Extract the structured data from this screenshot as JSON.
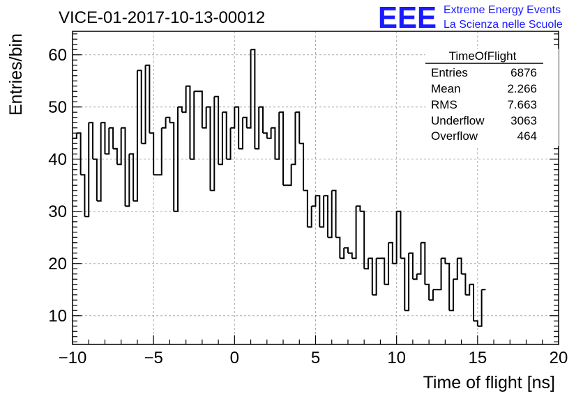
{
  "header": {
    "run_title": "VICE-01-2017-10-13-00012",
    "logo_text": "EEE",
    "brand_line1": "Extreme Energy Events",
    "brand_line2": "La Scienza nelle Scuole",
    "brand_color": "#1a1aff"
  },
  "stats_box": {
    "title": "TimeOfFlight",
    "rows": [
      {
        "label": "Entries",
        "value": "6876"
      },
      {
        "label": "Mean",
        "value": "2.266"
      },
      {
        "label": "RMS",
        "value": "7.663"
      },
      {
        "label": "Underflow",
        "value": "3063"
      },
      {
        "label": "Overflow",
        "value": "464"
      }
    ]
  },
  "chart_data": {
    "type": "histogram",
    "xlabel": "Time of flight [ns]",
    "ylabel": "Entries/bin",
    "xlim": [
      -10,
      20
    ],
    "ylim": [
      4.5,
      64.5
    ],
    "bin_width": 0.25,
    "grid": true,
    "xticks": [
      -10,
      -5,
      0,
      5,
      10,
      15,
      20
    ],
    "xtick_labels": [
      "−10",
      "−5",
      "0",
      "5",
      "10",
      "15",
      "20"
    ],
    "yticks": [
      10,
      20,
      30,
      40,
      50,
      60
    ],
    "ytick_labels": [
      "10",
      "20",
      "30",
      "40",
      "50",
      "60"
    ],
    "bin_edges_start": -10,
    "values": [
      44,
      45,
      37,
      29,
      47,
      40,
      32,
      47,
      41,
      46,
      42,
      39,
      46,
      31,
      41,
      32,
      57,
      43,
      58,
      45,
      37,
      37,
      46,
      48,
      47,
      30,
      50,
      49,
      54,
      40,
      53,
      53,
      46,
      50,
      34,
      52,
      39,
      49,
      40,
      46,
      50,
      42,
      48,
      46,
      61,
      42,
      50,
      45,
      44,
      46,
      40,
      49,
      35,
      35,
      39,
      49,
      43,
      34,
      27,
      31,
      33,
      27,
      33,
      25,
      34,
      25,
      21,
      23,
      22,
      21,
      31,
      30,
      19,
      21,
      14,
      21,
      21,
      16,
      24,
      20,
      30,
      21,
      11,
      22,
      17,
      18,
      24,
      16,
      13,
      15,
      15,
      21,
      20,
      11,
      17,
      21,
      18,
      14,
      16,
      9,
      8,
      15
    ]
  }
}
